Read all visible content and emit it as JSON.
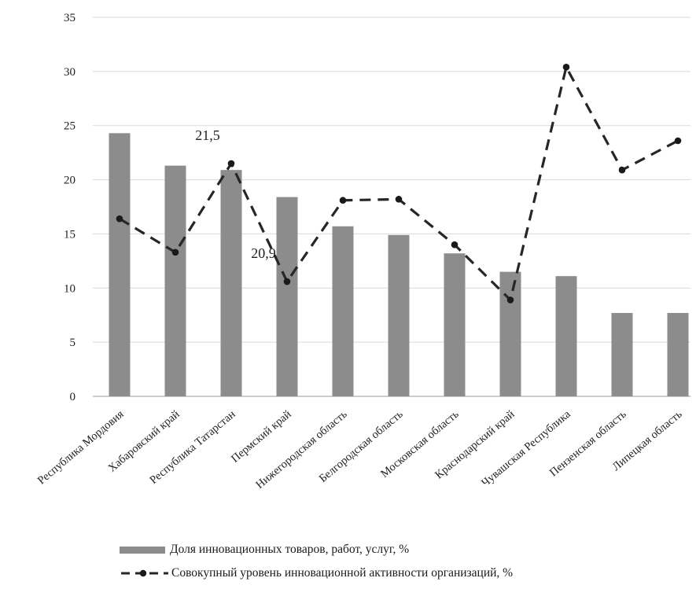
{
  "chart_data": {
    "type": "bar",
    "categories": [
      "Республика Мордовия",
      "Хабаровский край",
      "Республика Татарстан",
      "Пермский край",
      "Нижегородская область",
      "Белгородская область",
      "Московская область",
      "Краснодарский край",
      "Чувашская Республика",
      "Пензенская область",
      "Липецкая область"
    ],
    "series": [
      {
        "name": "Доля инновационных товаров, работ, услуг, %",
        "type": "bar",
        "color": "#8c8c8c",
        "values": [
          24.3,
          21.3,
          20.9,
          18.4,
          15.7,
          14.9,
          13.2,
          11.5,
          11.1,
          7.7,
          7.7
        ]
      },
      {
        "name": "Совокупный уровень инновационной активности организаций, %",
        "type": "line",
        "style": "dashed",
        "color": "#262626",
        "values": [
          16.4,
          13.3,
          21.5,
          10.6,
          18.1,
          18.2,
          14.0,
          8.9,
          30.4,
          20.9,
          23.6
        ]
      }
    ],
    "annotations": [
      {
        "text": "21,5",
        "category_index": 2
      },
      {
        "text": "20,9",
        "category_index": 3
      }
    ],
    "yticks": [
      "0",
      "5",
      "10",
      "15",
      "20",
      "25",
      "30",
      "35"
    ],
    "ylim": [
      0,
      35
    ],
    "grid": true,
    "legend_position": "bottom",
    "title": "",
    "xlabel": "",
    "ylabel": ""
  }
}
